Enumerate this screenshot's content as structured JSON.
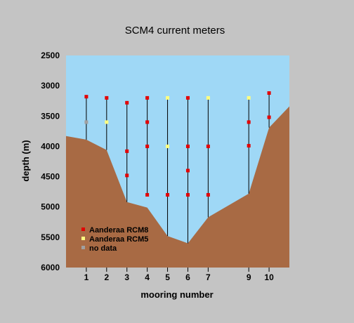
{
  "chart_data": {
    "type": "scatter",
    "title": "SCM4 current meters",
    "xlabel": "mooring number",
    "ylabel": "depth (m)",
    "xlim": [
      0,
      11
    ],
    "ylim": [
      6000,
      2500
    ],
    "y_inverted": true,
    "xticks": [
      1,
      2,
      3,
      4,
      5,
      6,
      7,
      9,
      10
    ],
    "yticks": [
      2500,
      3000,
      3500,
      4000,
      4500,
      5000,
      5500,
      6000
    ],
    "grid": false,
    "legend_position": "bottom-left",
    "colors": {
      "water": "#9fd8f6",
      "seafloor": "#a86a44",
      "RCM8": "#e40000",
      "RCM5": "#ffff80",
      "nodata": "#a0a0a0",
      "line": "#000000"
    },
    "seafloor_profile": [
      {
        "x": 0.0,
        "y": 3830
      },
      {
        "x": 1.0,
        "y": 3890
      },
      {
        "x": 2.0,
        "y": 4060
      },
      {
        "x": 3.0,
        "y": 4920
      },
      {
        "x": 4.0,
        "y": 5010
      },
      {
        "x": 5.0,
        "y": 5480
      },
      {
        "x": 6.0,
        "y": 5600
      },
      {
        "x": 7.0,
        "y": 5170
      },
      {
        "x": 9.0,
        "y": 4780
      },
      {
        "x": 10.0,
        "y": 3690
      },
      {
        "x": 11.0,
        "y": 3340
      }
    ],
    "moorings": [
      {
        "x": 1,
        "top": 3180,
        "bottom": 3890
      },
      {
        "x": 2,
        "top": 3200,
        "bottom": 4060
      },
      {
        "x": 3,
        "top": 3280,
        "bottom": 4920
      },
      {
        "x": 4,
        "top": 3200,
        "bottom": 4800
      },
      {
        "x": 5,
        "top": 3200,
        "bottom": 5480
      },
      {
        "x": 6,
        "top": 3200,
        "bottom": 5600
      },
      {
        "x": 7,
        "top": 3200,
        "bottom": 5170
      },
      {
        "x": 9,
        "top": 3200,
        "bottom": 4780
      },
      {
        "x": 10,
        "top": 3120,
        "bottom": 3690
      }
    ],
    "series": [
      {
        "name": "Aanderaa RCM8",
        "color": "#e40000",
        "points": [
          {
            "x": 1,
            "y": 3180
          },
          {
            "x": 2,
            "y": 3200
          },
          {
            "x": 3,
            "y": 3280
          },
          {
            "x": 3,
            "y": 4080
          },
          {
            "x": 3,
            "y": 4480
          },
          {
            "x": 4,
            "y": 3200
          },
          {
            "x": 4,
            "y": 3600
          },
          {
            "x": 4,
            "y": 4000
          },
          {
            "x": 4,
            "y": 4800
          },
          {
            "x": 5,
            "y": 4800
          },
          {
            "x": 6,
            "y": 3200
          },
          {
            "x": 6,
            "y": 4000
          },
          {
            "x": 6,
            "y": 4400
          },
          {
            "x": 6,
            "y": 4800
          },
          {
            "x": 7,
            "y": 4000
          },
          {
            "x": 7,
            "y": 4800
          },
          {
            "x": 9,
            "y": 3600
          },
          {
            "x": 9,
            "y": 3990
          },
          {
            "x": 10,
            "y": 3120
          },
          {
            "x": 10,
            "y": 3520
          }
        ]
      },
      {
        "name": "Aanderaa RCM5",
        "color": "#ffff80",
        "points": [
          {
            "x": 2,
            "y": 3600
          },
          {
            "x": 5,
            "y": 3200
          },
          {
            "x": 5,
            "y": 4000
          },
          {
            "x": 7,
            "y": 3200
          },
          {
            "x": 9,
            "y": 3200
          }
        ]
      },
      {
        "name": "no data",
        "color": "#a0a0a0",
        "points": [
          {
            "x": 1,
            "y": 3600
          }
        ]
      }
    ]
  }
}
